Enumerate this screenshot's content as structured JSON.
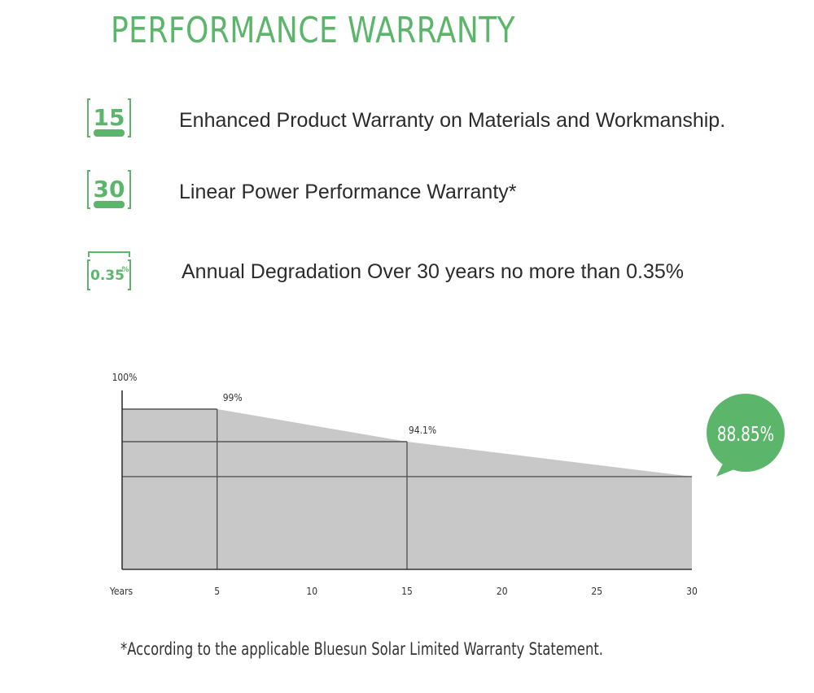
{
  "header": {
    "title": "PERFORMANCE WARRANTY"
  },
  "features": [
    {
      "badge": "15",
      "text": "Enhanced Product Warranty on Materials and Workmanship.",
      "icon": "warranty-15-icon"
    },
    {
      "badge": "30",
      "text": "Linear Power Performance Warranty*",
      "icon": "warranty-30-icon"
    },
    {
      "badge": "0.35",
      "badge_suffix": "%",
      "text": "Annual Degradation Over 30 years no more than 0.35%",
      "icon": "degradation-icon"
    }
  ],
  "colors": {
    "accent": "#5bb56a",
    "area": "#c8c8c8",
    "line": "#555555"
  },
  "chart_data": {
    "type": "area",
    "ylabel": "100%",
    "xlabel": "Years",
    "x_ticks": [
      5,
      10,
      15,
      20,
      25,
      30
    ],
    "xlim": [
      0,
      30
    ],
    "ylim": [
      80,
      100
    ],
    "points": [
      {
        "x": 0,
        "y": 99
      },
      {
        "x": 5,
        "y": 99
      },
      {
        "x": 15,
        "y": 94.1
      },
      {
        "x": 30,
        "y": 88.85
      }
    ],
    "labels": [
      {
        "x": 5,
        "y": 99,
        "text": "99%"
      },
      {
        "x": 15,
        "y": 94.1,
        "text": "94.1%"
      }
    ],
    "callout": {
      "x": 30,
      "y": 88.85,
      "text": "88.85%"
    },
    "grid": false
  },
  "footnote": "*According to the applicable Bluesun Solar Limited Warranty Statement."
}
